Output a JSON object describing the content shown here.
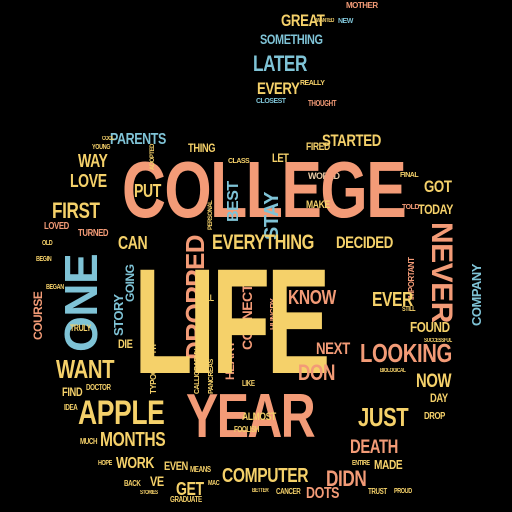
{
  "colors": {
    "background": "#000000",
    "salmon": "#F39B77",
    "yellow": "#F5D16A",
    "blue": "#7FC3D6",
    "tan": "#E8C9A4"
  },
  "words": {
    "college": "COLLEGE",
    "life": "LIFE",
    "year": "YEAR",
    "one": "ONE",
    "apple": "APPLE",
    "never": "NEVER",
    "dropped": "DROPPED",
    "everything": "EVERYTHING",
    "looking": "LOOKING",
    "later": "LATER",
    "something": "SOMETHING",
    "great": "GREAT",
    "every": "EVERY",
    "started": "STARTED",
    "parents": "PARENTS",
    "best": "BEST",
    "stay": "STAY",
    "way": "WAY",
    "love": "LOVE",
    "first": "FIRST",
    "put": "PUT",
    "can": "CAN",
    "decided": "DECIDED",
    "know": "KNOW",
    "ever": "EVER",
    "next": "NEXT",
    "don": "DON",
    "found": "FOUND",
    "now": "NOW",
    "want": "WANT",
    "just": "JUST",
    "months": "MONTHS",
    "work": "WORK",
    "death": "DEATH",
    "computer": "COMPUTER",
    "didn": "DIDN",
    "dots": "DOTS",
    "get": "GET",
    "got": "GOT",
    "today": "TODAY",
    "company": "COMPANY",
    "course": "COURSE",
    "story": "STORY",
    "going": "GOING",
    "turned": "TURNED",
    "loved": "LOVED",
    "made": "MADE",
    "day": "DAY",
    "connect": "CONNECT",
    "heart": "HEART",
    "fired": "FIRED",
    "make": "MAKE",
    "thing": "THING",
    "let": "LET",
    "even": "EVEN",
    "ve": "VE",
    "find": "FIND",
    "mother": "MOTHER",
    "new": "NEW",
    "really": "REALLY",
    "closest": "CLOSEST",
    "thought": "THOUGHT",
    "wanted": "WANTED",
    "told": "TOLD",
    "graduate": "GRADUATE",
    "cancer": "CANCER",
    "back": "BACK",
    "almost": "ALMOST",
    "truly": "TRULY",
    "doctor": "DOCTOR",
    "die": "DIE",
    "means": "MEANS",
    "foolish": "FOOLISH",
    "idea": "IDEA",
    "drop": "DROP",
    "hungry": "HUNGRY",
    "world": "WORLD",
    "class": "CLASS",
    "important": "IMPORTANT",
    "final": "FINAL",
    "begin": "BEGIN",
    "old": "OLD",
    "began": "BEGAN",
    "young": "YOUNG",
    "cool": "COOL",
    "much": "MUCH",
    "hope": "HOPE",
    "stories": "STORIES",
    "typography": "TYPOGRAPHY",
    "mac": "MAC",
    "better": "BETTER",
    "entire": "ENTIRE",
    "trust": "TRUST",
    "proud": "PROUD",
    "still": "STILL",
    "biological": "BIOLOGICAL",
    "successful": "SUCCESSFUL",
    "adopted": "ADOPTED",
    "calligraphy": "CALLIGRAPHY",
    "pancreas": "PANCREAS",
    "personal": "PERSONAL",
    "like": "LIKE",
    "will": "WILL",
    "life_small": "LIFE"
  }
}
